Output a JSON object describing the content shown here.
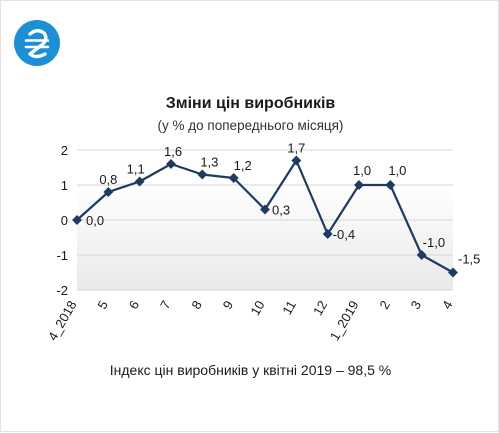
{
  "colors": {
    "logo_bg": "#1c8fd6",
    "line": "#1f3a60",
    "marker": "#1f3a60",
    "grid": "#d6d6d6",
    "plot_fill_top": "#ffffff",
    "plot_fill_bottom": "#e9e9e9"
  },
  "logo": {
    "icon": "hryvnia-icon",
    "glyph": "₴"
  },
  "chart_data": {
    "type": "line",
    "title": "Зміни цін виробників",
    "subtitle": "(у % до попереднього місяця)",
    "categories": [
      "4_2018",
      "5",
      "6",
      "7",
      "8",
      "9",
      "10",
      "11",
      "12",
      "1_2019",
      "2",
      "3",
      "4"
    ],
    "series": [
      {
        "values": [
          0.0,
          0.8,
          1.1,
          1.6,
          1.3,
          1.2,
          0.3,
          1.7,
          -0.4,
          1.0,
          1.0,
          -1.0,
          -1.5
        ]
      }
    ],
    "data_labels": [
      "0,0",
      "0,8",
      "1,1",
      "1,6",
      "1,3",
      "1,2",
      "0,3",
      "1,7",
      "-0,4",
      "1,0",
      "1,0",
      "-1,0",
      "-1,5"
    ],
    "ylim": [
      -2,
      2
    ],
    "yticks": [
      2,
      1,
      0,
      -1,
      -2
    ],
    "ytick_labels": [
      "2",
      "1",
      "0",
      "-1",
      "-2"
    ],
    "grid": true,
    "xlabel": "",
    "ylabel": ""
  },
  "footnote": "Індекс цін виробників у квітні 2019 – 98,5 %"
}
